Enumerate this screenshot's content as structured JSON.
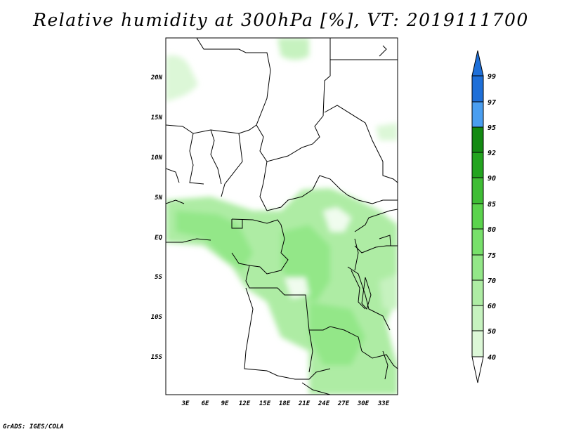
{
  "title": "Relative humidity at 300hPa [%], VT: 2019111700",
  "credit": "GrADS: IGES/COLA",
  "map": {
    "lat_labels": [
      "20N",
      "15N",
      "10N",
      "5N",
      "EQ",
      "5S",
      "10S",
      "15S"
    ],
    "lon_labels": [
      "3E",
      "6E",
      "9E",
      "12E",
      "15E",
      "18E",
      "21E",
      "24E",
      "27E",
      "30E",
      "33E"
    ]
  },
  "colorbar": {
    "levels": [
      "99",
      "97",
      "95",
      "92",
      "90",
      "85",
      "80",
      "75",
      "70",
      "60",
      "50",
      "40"
    ],
    "colors": {
      "below_40": "#ffffff",
      "40_50": "#f0fcee",
      "50_60": "#dcf7d7",
      "60_70": "#c6f2bf",
      "70_75": "#aeeca4",
      "75_80": "#93e788",
      "80_85": "#78e06b",
      "85_90": "#5bd34d",
      "90_92": "#3fbd35",
      "92_95": "#23a41f",
      "95_97": "#138a12",
      "97_99": "#4a9ef0",
      "above_99": "#1e6fd8"
    }
  }
}
